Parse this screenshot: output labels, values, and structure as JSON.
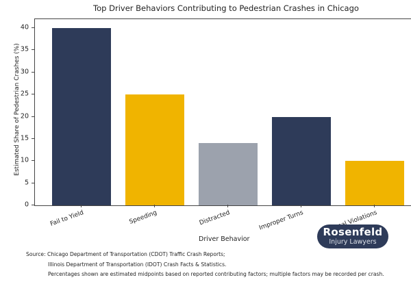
{
  "chart_data": {
    "type": "bar",
    "title": "Top Driver Behaviors Contributing to Pedestrian Crashes in Chicago",
    "xlabel": "Driver Behavior",
    "ylabel": "Estimated Share of Pedestrian Crashes (%)",
    "categories": [
      "Fail to Yield",
      "Speeding",
      "Distracted",
      "Improper Turns",
      "Signal Violations"
    ],
    "values": [
      40,
      25,
      14,
      20,
      10
    ],
    "colors": [
      "#2e3b59",
      "#f0b400",
      "#9ca2ad",
      "#2e3b59",
      "#f0b400"
    ],
    "ylim": [
      0,
      42
    ],
    "yticks": [
      0,
      5,
      10,
      15,
      20,
      25,
      30,
      35,
      40
    ],
    "grid": false,
    "legend": null
  },
  "source": {
    "line1": "Source: Chicago Department of Transportation (CDOT) Traffic Crash Reports;",
    "line2": "Illinois Department of Transportation (IDOT) Crash Facts & Statistics.",
    "line3": "Percentages shown are estimated midpoints based on reported contributing factors; multiple factors may be recorded per crash."
  },
  "logo": {
    "name": "Rosenfeld",
    "subtitle": "Injury Lawyers",
    "color": "#2e3b59"
  }
}
